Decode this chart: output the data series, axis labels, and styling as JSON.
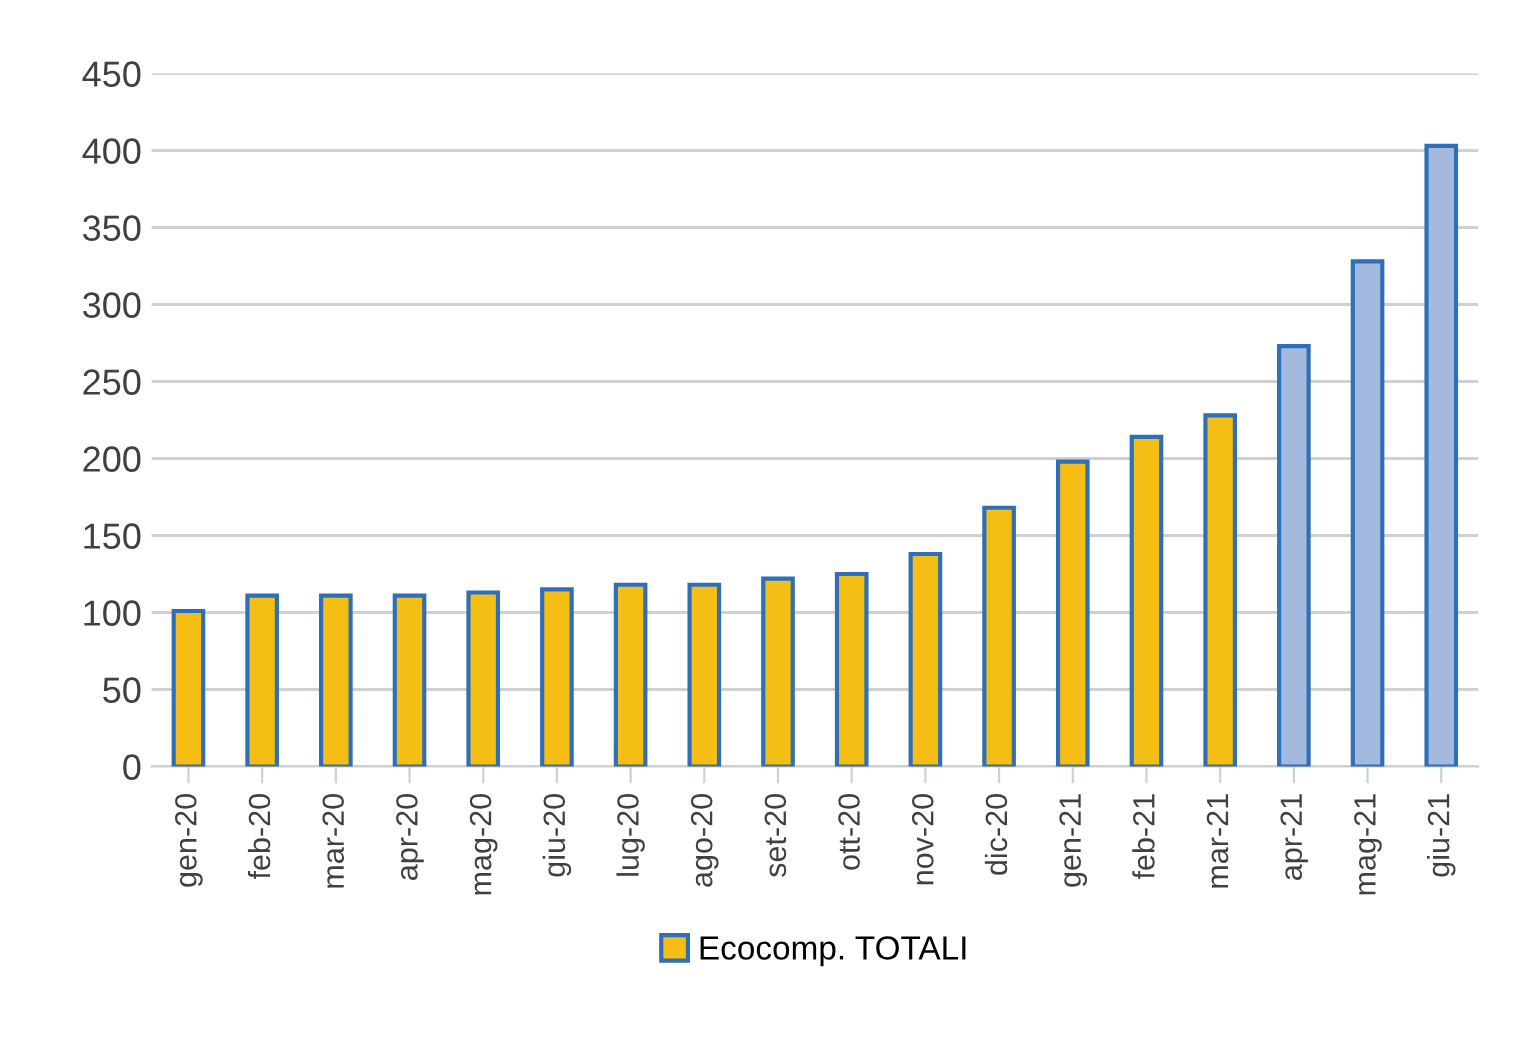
{
  "chart_data": {
    "type": "bar",
    "categories": [
      "gen-20",
      "feb-20",
      "mar-20",
      "apr-20",
      "mag-20",
      "giu-20",
      "lug-20",
      "ago-20",
      "set-20",
      "ott-20",
      "nov-20",
      "dic-20",
      "gen-21",
      "feb-21",
      "mar-21",
      "apr-21",
      "mag-21",
      "giu-21"
    ],
    "series": [
      {
        "name": "Ecocomp. TOTALI",
        "color": "#f5be14",
        "values": [
          101,
          111,
          111,
          111,
          113,
          115,
          118,
          118,
          122,
          125,
          138,
          168,
          198,
          214,
          228,
          273,
          328,
          403
        ],
        "colors": [
          "#f5be14",
          "#f5be14",
          "#f5be14",
          "#f5be14",
          "#f5be14",
          "#f5be14",
          "#f5be14",
          "#f5be14",
          "#f5be14",
          "#f5be14",
          "#f5be14",
          "#f5be14",
          "#f5be14",
          "#f5be14",
          "#f5be14",
          "#a4b9de",
          "#a4b9de",
          "#a4b9de"
        ]
      }
    ],
    "ylim": [
      0,
      450
    ],
    "yticks": [
      0,
      50,
      100,
      150,
      200,
      250,
      300,
      350,
      400,
      450
    ],
    "grid": "y",
    "legend": "bottom"
  }
}
